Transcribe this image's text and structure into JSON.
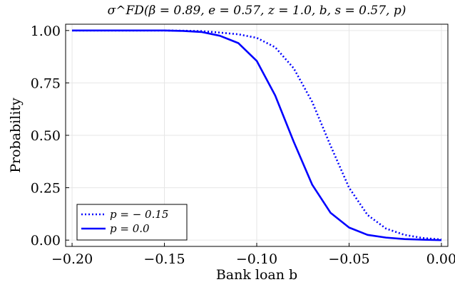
{
  "chart_data": {
    "type": "line",
    "title": "σ^FD(β = 0.89, e = 0.57, z = 1.0, b, s = 0.57, p)",
    "xlabel": "Bank loan b",
    "ylabel": "Probability",
    "xlim": [
      -0.2035,
      0.0035
    ],
    "ylim": [
      -0.03,
      1.03
    ],
    "x_ticks": [
      -0.2,
      -0.15,
      -0.1,
      -0.05,
      0.0
    ],
    "x_tick_labels": [
      "−0.20",
      "−0.15",
      "−0.10",
      "−0.05",
      "0.00"
    ],
    "y_ticks": [
      0.0,
      0.25,
      0.5,
      0.75,
      1.0
    ],
    "y_tick_labels": [
      "0.00",
      "0.25",
      "0.50",
      "0.75",
      "1.00"
    ],
    "grid": true,
    "legend_position": "bottom-left",
    "series": [
      {
        "name": "p = − 0.15",
        "style": "dotted",
        "color": "#0000ff",
        "x": [
          -0.2,
          -0.19,
          -0.18,
          -0.17,
          -0.16,
          -0.15,
          -0.14,
          -0.13,
          -0.12,
          -0.11,
          -0.1,
          -0.09,
          -0.08,
          -0.07,
          -0.06,
          -0.05,
          -0.04,
          -0.03,
          -0.02,
          -0.01,
          0.0
        ],
        "y": [
          1.0,
          1.0,
          1.0,
          1.0,
          1.0,
          1.0,
          0.999,
          0.997,
          0.99,
          0.982,
          0.965,
          0.92,
          0.82,
          0.66,
          0.45,
          0.25,
          0.12,
          0.055,
          0.025,
          0.01,
          0.003
        ]
      },
      {
        "name": "p = 0.0",
        "style": "solid",
        "color": "#0000ff",
        "x": [
          -0.2,
          -0.19,
          -0.18,
          -0.17,
          -0.16,
          -0.15,
          -0.14,
          -0.13,
          -0.12,
          -0.11,
          -0.1,
          -0.09,
          -0.08,
          -0.07,
          -0.06,
          -0.05,
          -0.04,
          -0.03,
          -0.02,
          -0.01,
          0.0
        ],
        "y": [
          1.0,
          1.0,
          1.0,
          1.0,
          1.0,
          1.0,
          0.998,
          0.993,
          0.975,
          0.94,
          0.855,
          0.69,
          0.47,
          0.265,
          0.13,
          0.06,
          0.025,
          0.012,
          0.005,
          0.002,
          0.0
        ]
      }
    ]
  }
}
